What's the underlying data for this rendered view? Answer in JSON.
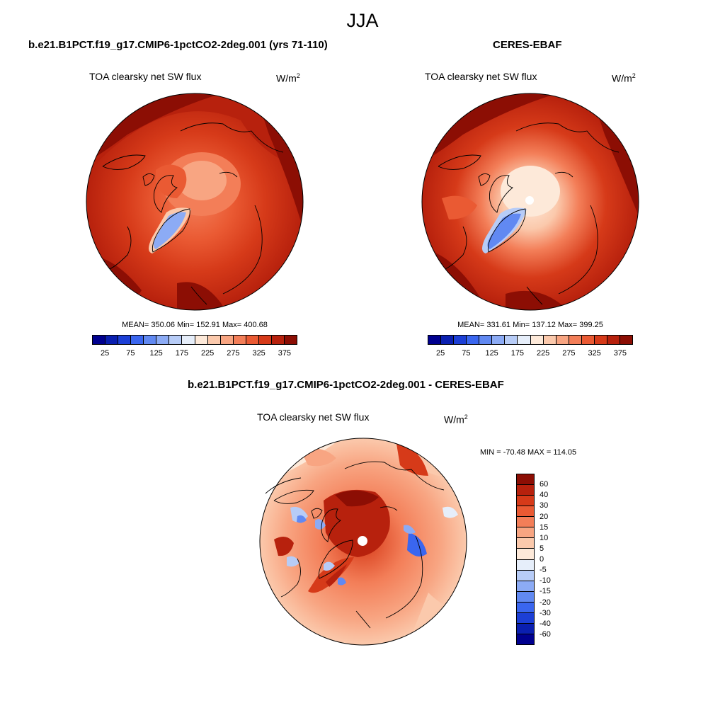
{
  "season": "JJA",
  "panels": {
    "model": {
      "title": "b.e21.B1PCT.f19_g17.CMIP6-1pctCO2-2deg.001 (yrs 71-110)",
      "subtitle": "TOA clearsky net SW flux",
      "units": "W/m",
      "units_sup": "2",
      "stats": "MEAN= 350.06  Min= 152.91  Max= 400.68"
    },
    "obs": {
      "title": "CERES-EBAF",
      "subtitle": "TOA clearsky net SW flux",
      "units": "W/m",
      "units_sup": "2",
      "stats": "MEAN= 331.61  Min= 137.12  Max= 399.25"
    },
    "diff": {
      "title": "b.e21.B1PCT.f19_g17.CMIP6-1pctCO2-2deg.001 - CERES-EBAF",
      "subtitle": "TOA clearsky net SW flux",
      "units": "W/m",
      "units_sup": "2",
      "stats": "MIN = -70.48 MAX = 114.05"
    }
  },
  "colorbars": {
    "absolute": {
      "colors": [
        "#00008f",
        "#0a1fb0",
        "#1c3fd6",
        "#3a66ef",
        "#6189f2",
        "#8cabf5",
        "#b7ccf7",
        "#e6eefa",
        "#fde9d9",
        "#fbc9ac",
        "#f8a582",
        "#f37e58",
        "#ea5a33",
        "#d63a19",
        "#b7210d",
        "#8c0e04"
      ],
      "tick_labels": [
        "25",
        "75",
        "125",
        "175",
        "225",
        "275",
        "325",
        "375"
      ]
    },
    "difference": {
      "colors": [
        "#8c0e04",
        "#b7210d",
        "#d63a19",
        "#ea5a33",
        "#f37e58",
        "#f8a582",
        "#fbc9ac",
        "#fde9d9",
        "#e6eefa",
        "#b7ccf7",
        "#8cabf5",
        "#6189f2",
        "#3a66ef",
        "#1c3fd6",
        "#0a1fb0",
        "#00008f"
      ],
      "tick_labels": [
        "60",
        "40",
        "30",
        "20",
        "15",
        "10",
        "5",
        "0",
        "-5",
        "-10",
        "-15",
        "-20",
        "-30",
        "-40",
        "-60"
      ]
    }
  }
}
